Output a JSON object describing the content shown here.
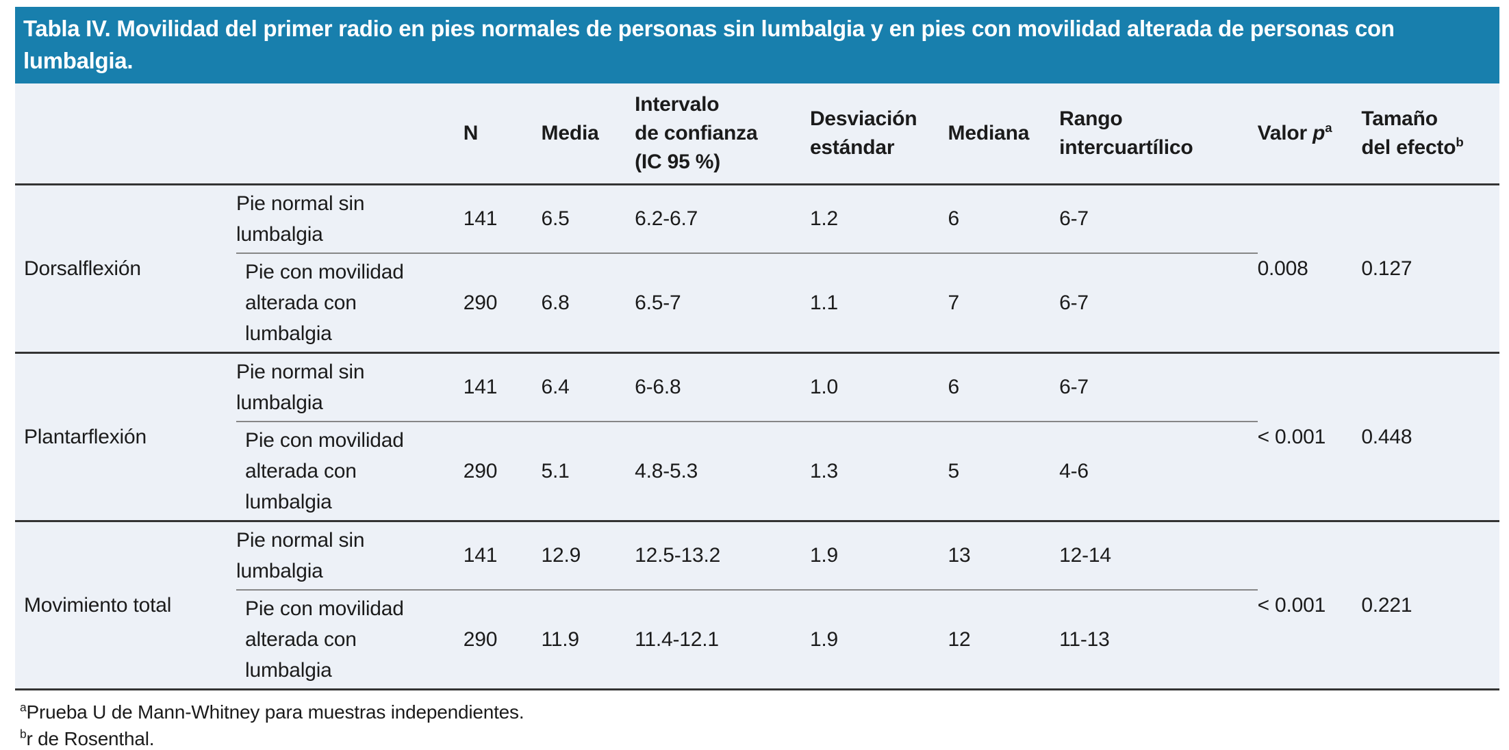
{
  "title": "Tabla IV. Movilidad del primer radio en pies normales de personas sin lumbalgia y en pies con movilidad alterada de personas con lumbalgia.",
  "colors": {
    "header_band_bg": "#187fad",
    "table_bg": "#edf1f7",
    "rule_dark": "#333333",
    "rule_gray": "#868686",
    "text_color": "#1b1b1b",
    "title_text": "#ffffff"
  },
  "table": {
    "headers": {
      "n": "N",
      "media": "Media",
      "ic": "Intervalo\nde confianza\n(IC 95 %)",
      "de": "Desviación\nestándar",
      "mediana": "Mediana",
      "rango": "Rango\nintercuartílico",
      "valor_p": {
        "text": "Valor ",
        "italic": "p",
        "sup": "a"
      },
      "tamano": {
        "text": "Tamaño\ndel efecto",
        "sup": "b"
      }
    },
    "sections": [
      {
        "group": "Dorsalflexión",
        "valor_p": "0.008",
        "tamano_efecto": "0.127",
        "rows": [
          {
            "label": "Pie normal sin\nlumbalgia",
            "n": "141",
            "media": "6.5",
            "ic": "6.2-6.7",
            "de": "1.2",
            "mediana": "6",
            "rango": "6-7"
          },
          {
            "label": "Pie con movilidad\nalterada con\nlumbalgia",
            "n": "290",
            "media": "6.8",
            "ic": "6.5-7",
            "de": "1.1",
            "mediana": "7",
            "rango": "6-7"
          }
        ]
      },
      {
        "group": "Plantarflexión",
        "valor_p": "< 0.001",
        "tamano_efecto": "0.448",
        "rows": [
          {
            "label": "Pie normal sin\nlumbalgia",
            "n": "141",
            "media": "6.4",
            "ic": "6-6.8",
            "de": "1.0",
            "mediana": "6",
            "rango": "6-7"
          },
          {
            "label": "Pie con movilidad\nalterada con\nlumbalgia",
            "n": "290",
            "media": "5.1",
            "ic": "4.8-5.3",
            "de": "1.3",
            "mediana": "5",
            "rango": "4-6"
          }
        ]
      },
      {
        "group": "Movimiento total",
        "valor_p": "< 0.001",
        "tamano_efecto": "0.221",
        "rows": [
          {
            "label": "Pie normal sin\nlumbalgia",
            "n": "141",
            "media": "12.9",
            "ic": "12.5-13.2",
            "de": "1.9",
            "mediana": "13",
            "rango": "12-14"
          },
          {
            "label": "Pie con movilidad\nalterada con\nlumbalgia",
            "n": "290",
            "media": "11.9",
            "ic": "11.4-12.1",
            "de": "1.9",
            "mediana": "12",
            "rango": "11-13"
          }
        ]
      }
    ]
  },
  "footnotes": [
    {
      "sup": "a",
      "text": "Prueba U de Mann-Whitney para muestras independientes."
    },
    {
      "sup": "b",
      "text": "r de Rosenthal."
    }
  ]
}
